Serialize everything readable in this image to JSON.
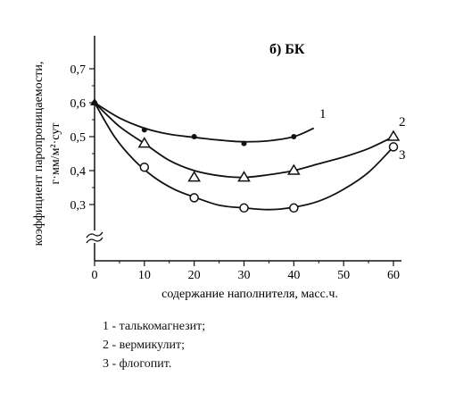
{
  "chart_data": {
    "type": "line",
    "panel_label": "б) БК",
    "ylabel_line1": "коэффициент паропроницаемости,",
    "ylabel_line2": "г·мм/м²·сут",
    "xlabel": "содержание наполнителя, масс.ч.",
    "x_ticks": [
      "0",
      "10",
      "20",
      "30",
      "40",
      "50",
      "60"
    ],
    "y_ticks": [
      "0,3",
      "0,4",
      "0,5",
      "0,6",
      "0,7"
    ],
    "xlim": [
      0,
      60
    ],
    "ylim": [
      0.3,
      0.7
    ],
    "y_axis_break": true,
    "series": [
      {
        "name": "1",
        "marker": "filled-circle",
        "points": [
          [
            0,
            0.6
          ],
          [
            10,
            0.52
          ],
          [
            20,
            0.5
          ],
          [
            30,
            0.48
          ],
          [
            40,
            0.5
          ]
        ],
        "curve": [
          [
            0,
            0.6
          ],
          [
            5,
            0.555
          ],
          [
            10,
            0.525
          ],
          [
            15,
            0.507
          ],
          [
            20,
            0.498
          ],
          [
            25,
            0.49
          ],
          [
            30,
            0.485
          ],
          [
            35,
            0.488
          ],
          [
            40,
            0.5
          ],
          [
            44,
            0.525
          ]
        ]
      },
      {
        "name": "2",
        "marker": "triangle",
        "points": [
          [
            10,
            0.48
          ],
          [
            20,
            0.38
          ],
          [
            30,
            0.38
          ],
          [
            40,
            0.4
          ],
          [
            60,
            0.5
          ]
        ],
        "curve": [
          [
            0,
            0.6
          ],
          [
            5,
            0.53
          ],
          [
            10,
            0.48
          ],
          [
            15,
            0.43
          ],
          [
            20,
            0.4
          ],
          [
            25,
            0.385
          ],
          [
            30,
            0.38
          ],
          [
            35,
            0.388
          ],
          [
            40,
            0.4
          ],
          [
            45,
            0.42
          ],
          [
            50,
            0.44
          ],
          [
            55,
            0.465
          ],
          [
            60,
            0.5
          ]
        ]
      },
      {
        "name": "3",
        "marker": "open-circle",
        "points": [
          [
            10,
            0.41
          ],
          [
            20,
            0.32
          ],
          [
            30,
            0.29
          ],
          [
            40,
            0.29
          ],
          [
            60,
            0.47
          ]
        ],
        "curve": [
          [
            0,
            0.6
          ],
          [
            4,
            0.5
          ],
          [
            8,
            0.43
          ],
          [
            12,
            0.38
          ],
          [
            16,
            0.345
          ],
          [
            20,
            0.322
          ],
          [
            25,
            0.298
          ],
          [
            30,
            0.29
          ],
          [
            35,
            0.285
          ],
          [
            40,
            0.292
          ],
          [
            45,
            0.31
          ],
          [
            50,
            0.345
          ],
          [
            55,
            0.395
          ],
          [
            60,
            0.47
          ]
        ]
      }
    ],
    "legend": [
      "1 - талькомагнезит;",
      "2 - вермикулит;",
      "3 - флогопит."
    ]
  }
}
